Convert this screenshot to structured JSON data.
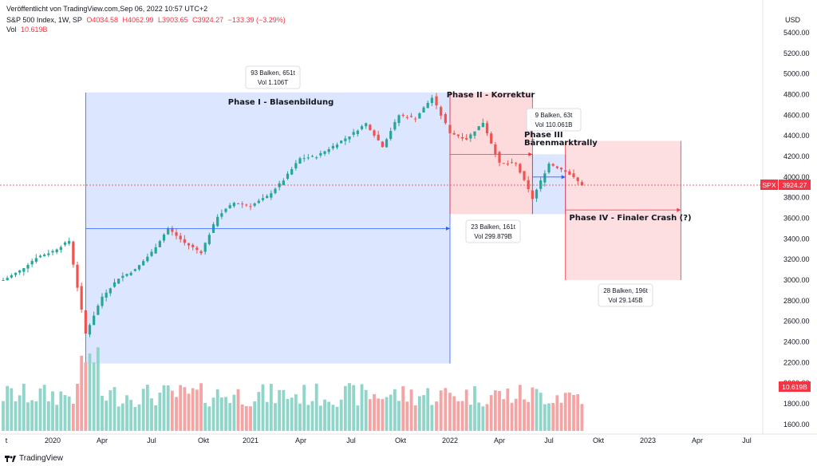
{
  "header": {
    "published": "Veröffentlicht von TradingView.com,Sep 06, 2022 10:57 UTC+2",
    "symbol": "S&P 500 Index, 1W, SP",
    "ohlc": {
      "o": "O4034.58",
      "h": "H4062.99",
      "l": "L3903.65",
      "c": "C3924.27",
      "chg": "−133.39 (−3.29%)"
    },
    "vol_label": "Vol",
    "vol_value": "10.619B"
  },
  "footer": {
    "brand": "TradingView"
  },
  "colors": {
    "up": "#26a69a",
    "down": "#ef5350",
    "vol_up": "#8fd5c9",
    "vol_down": "#f5a3a3",
    "blue": "#2962ff",
    "red": "#f23645"
  },
  "chart_data": {
    "type": "candlestick",
    "axis_unit": "USD",
    "ylim": [
      1450,
      5550
    ],
    "y_ticks": [
      "5400.00",
      "5200.00",
      "5000.00",
      "4800.00",
      "4600.00",
      "4400.00",
      "4200.00",
      "4000.00",
      "3800.00",
      "3600.00",
      "3400.00",
      "3200.00",
      "3000.00",
      "2800.00",
      "2600.00",
      "2400.00",
      "2200.00",
      "2000.00",
      "1800.00",
      "1600.00"
    ],
    "x_ticks": [
      "t",
      "2020",
      "Apr",
      "Jul",
      "Okt",
      "2021",
      "Apr",
      "Jul",
      "Okt",
      "2022",
      "Apr",
      "Jul",
      "Okt",
      "2023",
      "Apr",
      "Jul"
    ],
    "last_price": {
      "symbol": "SPX",
      "value": "3924.27"
    },
    "last_volume": "10.619B",
    "weekly_close_points": [
      {
        "x": "2019-10",
        "close": 3000
      },
      {
        "x": "2019-11",
        "close": 3090
      },
      {
        "x": "2019-12",
        "close": 3220
      },
      {
        "x": "2020-01",
        "close": 3280
      },
      {
        "x": "2020-02",
        "close": 3380
      },
      {
        "x": "2020-03",
        "close": 2480
      },
      {
        "x": "2020-04",
        "close": 2840
      },
      {
        "x": "2020-05",
        "close": 3020
      },
      {
        "x": "2020-06",
        "close": 3100
      },
      {
        "x": "2020-07",
        "close": 3270
      },
      {
        "x": "2020-08",
        "close": 3500
      },
      {
        "x": "2020-09",
        "close": 3360
      },
      {
        "x": "2020-10",
        "close": 3270
      },
      {
        "x": "2020-11",
        "close": 3620
      },
      {
        "x": "2020-12",
        "close": 3750
      },
      {
        "x": "2021-01",
        "close": 3720
      },
      {
        "x": "2021-02",
        "close": 3810
      },
      {
        "x": "2021-03",
        "close": 3970
      },
      {
        "x": "2021-04",
        "close": 4180
      },
      {
        "x": "2021-05",
        "close": 4200
      },
      {
        "x": "2021-06",
        "close": 4300
      },
      {
        "x": "2021-07",
        "close": 4400
      },
      {
        "x": "2021-08",
        "close": 4520
      },
      {
        "x": "2021-09",
        "close": 4300
      },
      {
        "x": "2021-10",
        "close": 4600
      },
      {
        "x": "2021-11",
        "close": 4570
      },
      {
        "x": "2021-12",
        "close": 4770
      },
      {
        "x": "2022-01",
        "close": 4430
      },
      {
        "x": "2022-02",
        "close": 4370
      },
      {
        "x": "2022-03",
        "close": 4530
      },
      {
        "x": "2022-04",
        "close": 4130
      },
      {
        "x": "2022-05",
        "close": 4130
      },
      {
        "x": "2022-06",
        "close": 3790
      },
      {
        "x": "2022-07",
        "close": 4130
      },
      {
        "x": "2022-08",
        "close": 4060
      },
      {
        "x": "2022-09",
        "close": 3924
      }
    ],
    "phases": [
      {
        "title": "Phase I - Blasenbildung",
        "bars": "93 Balken, 651t",
        "vol": "Vol 1.106T",
        "from": "2020-03",
        "to": "2022-01",
        "low": 2190,
        "high": 4820
      },
      {
        "title": "Phase II - Korrektur",
        "bars": "23 Balken, 161t",
        "vol": "Vol 299.879B",
        "from": "2022-01",
        "to": "2022-06",
        "low": 3640,
        "high": 4820
      },
      {
        "title_lines": [
          "Phase III",
          "Bärenmarktrally"
        ],
        "bars": "9 Balken, 63t",
        "vol": "Vol 110.061B",
        "from": "2022-06",
        "to": "2022-08",
        "low": 3640,
        "high": 4220
      },
      {
        "title": "Phase IV - Finaler Crash (?)",
        "bars": "28 Balken, 196t",
        "vol": "Vol 29.145B",
        "from": "2022-08",
        "to": "2023-03",
        "low": 3000,
        "high": 4350
      }
    ]
  }
}
